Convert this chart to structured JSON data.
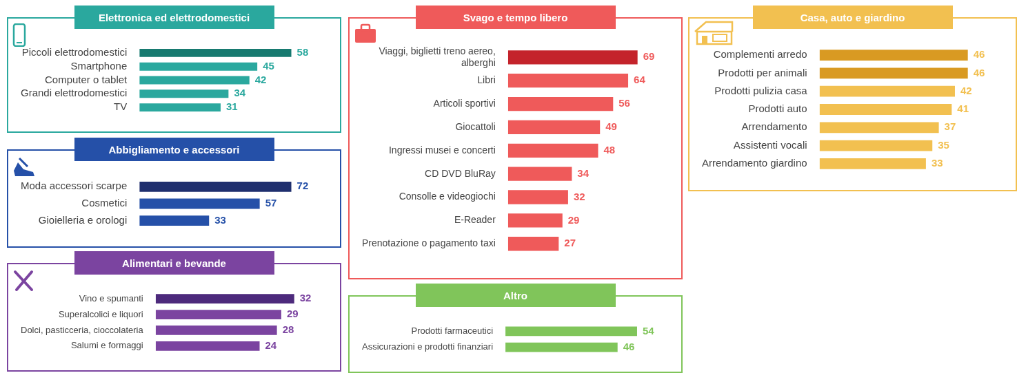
{
  "chart_data": [
    {
      "type": "bar",
      "orientation": "horizontal",
      "title": "Elettronica ed elettrodomestici",
      "categories": [
        "Piccoli elettrodomestici",
        "Smartphone",
        "Computer o tablet",
        "Grandi elettrodomestici",
        "TV"
      ],
      "values": [
        58,
        45,
        42,
        34,
        31
      ],
      "colors": [
        "#177a70",
        "#2aa89e",
        "#2aa89e",
        "#2aa89e",
        "#2aa89e"
      ],
      "data_labels": true,
      "legend": false
    },
    {
      "type": "bar",
      "orientation": "horizontal",
      "title": "Abbigliamento e accessori",
      "categories": [
        "Moda accessori scarpe",
        "Cosmetici",
        "Gioielleria e orologi"
      ],
      "values": [
        72,
        57,
        33
      ],
      "colors": [
        "#1f2f6e",
        "#2550a8",
        "#2550a8"
      ],
      "data_labels": true,
      "legend": false
    },
    {
      "type": "bar",
      "orientation": "horizontal",
      "title": "Alimentari e bevande",
      "categories": [
        "Vino e spumanti",
        "Superalcolici e liquori",
        "Dolci, pasticceria, cioccolateria",
        "Salumi e formaggi"
      ],
      "values": [
        32,
        29,
        28,
        24
      ],
      "colors": [
        "#4d2a7c",
        "#7b44a0",
        "#7b44a0",
        "#7b44a0"
      ],
      "data_labels": true,
      "legend": false
    },
    {
      "type": "bar",
      "orientation": "horizontal",
      "title": "Svago e tempo libero",
      "categories": [
        "Viaggi, biglietti treno aereo, alberghi",
        "Libri",
        "Articoli sportivi",
        "Giocattoli",
        "Ingressi musei e concerti",
        "CD DVD BluRay",
        "Consolle e videogiochi",
        "E-Reader",
        "Prenotazione o pagamento taxi"
      ],
      "values": [
        69,
        64,
        56,
        49,
        48,
        34,
        32,
        29,
        27
      ],
      "colors": [
        "#c4232b",
        "#ef5a5a",
        "#ef5a5a",
        "#ef5a5a",
        "#ef5a5a",
        "#ef5a5a",
        "#ef5a5a",
        "#ef5a5a",
        "#ef5a5a"
      ],
      "data_labels": true,
      "legend": false
    },
    {
      "type": "bar",
      "orientation": "horizontal",
      "title": "Altro",
      "categories": [
        "Prodotti farmaceutici",
        "Assicurazioni e prodotti finanziari"
      ],
      "values": [
        54,
        46
      ],
      "colors": [
        "#80c55a",
        "#80c55a"
      ],
      "data_labels": true,
      "legend": false
    },
    {
      "type": "bar",
      "orientation": "horizontal",
      "title": "Casa, auto e giardino",
      "categories": [
        "Complementi arredo",
        "Prodotti per animali",
        "Prodotti pulizia casa",
        "Prodotti auto",
        "Arrendamento",
        "Assistenti vocali",
        "Arrendamento giardino"
      ],
      "values": [
        46,
        46,
        42,
        41,
        37,
        35,
        33
      ],
      "colors": [
        "#d99a22",
        "#d99a22",
        "#f2c050",
        "#f2c050",
        "#f2c050",
        "#f2c050",
        "#f2c050"
      ],
      "data_labels": true,
      "legend": false
    }
  ]
}
